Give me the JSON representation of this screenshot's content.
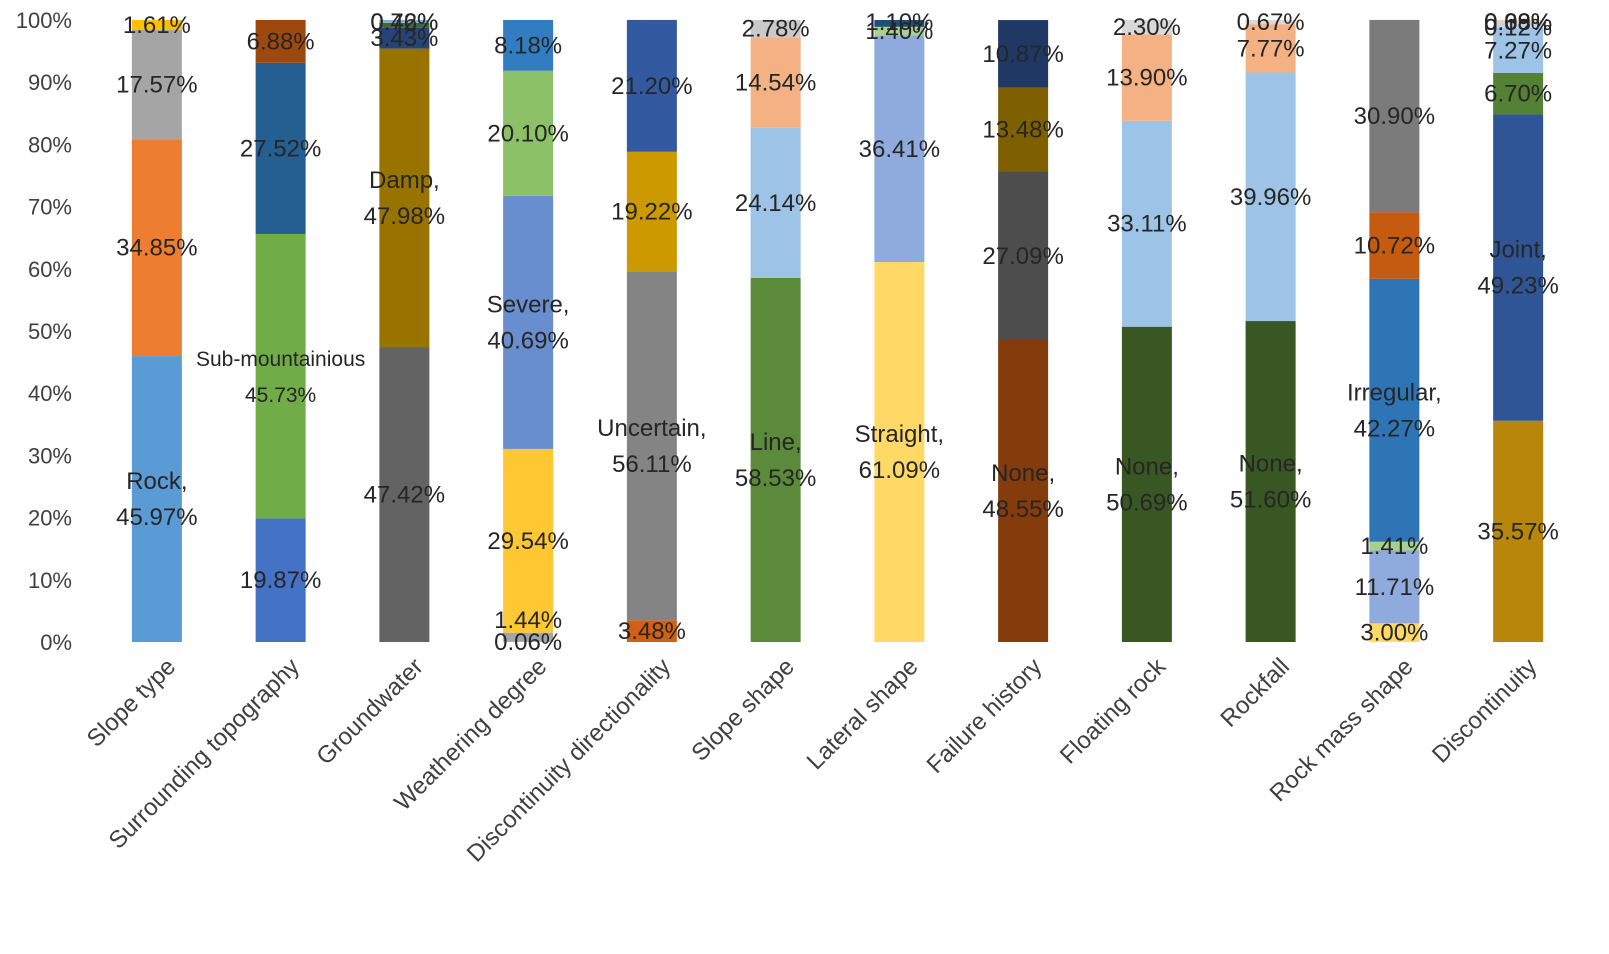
{
  "chart_data": {
    "type": "bar",
    "stacked": true,
    "percent_stacked": true,
    "title": "",
    "xlabel": "",
    "ylabel": "",
    "ylim": [
      0,
      100
    ],
    "y_ticks": [
      "0%",
      "10%",
      "20%",
      "30%",
      "40%",
      "50%",
      "60%",
      "70%",
      "80%",
      "90%",
      "100%"
    ],
    "grid": false,
    "legend": "none",
    "categories": [
      "Slope type",
      "Surrounding topography",
      "Groundwater",
      "Weathering degree",
      "Discontinuity directionality",
      "Slope shape",
      "Lateral shape",
      "Failure history",
      "Floating rock",
      "Rockfall",
      "Rock mass shape",
      "Discontinuity"
    ],
    "bars": [
      {
        "category": "Slope type",
        "segments": [
          {
            "value": 45.97,
            "label": "Rock,\n45.97%",
            "color": "#5b9bd5"
          },
          {
            "value": 34.85,
            "label": "34.85%",
            "color": "#ed7d31"
          },
          {
            "value": 17.57,
            "label": "17.57%",
            "color": "#a5a5a5"
          },
          {
            "value": 1.61,
            "label": "1.61%",
            "color": "#ffc000"
          }
        ]
      },
      {
        "category": "Surrounding topography",
        "segments": [
          {
            "value": 19.87,
            "label": "19.87%",
            "color": "#4472c4"
          },
          {
            "value": 45.73,
            "label": "Sub-mountainious\n45.73%",
            "color": "#70ad47"
          },
          {
            "value": 27.52,
            "label": "27.52%",
            "color": "#255e91"
          },
          {
            "value": 6.88,
            "label": "6.88%",
            "color": "#9e480e"
          }
        ]
      },
      {
        "category": "Groundwater",
        "segments": [
          {
            "value": 47.42,
            "label": "47.42%",
            "color": "#636363"
          },
          {
            "value": 47.98,
            "label": "Damp,\n47.98%",
            "color": "#997300"
          },
          {
            "value": 3.43,
            "label": "3.43%",
            "color": "#264478"
          },
          {
            "value": 0.72,
            "label": "0.72%",
            "color": "#43682b"
          },
          {
            "value": 0.46,
            "label": "0.46%",
            "color": "#7cafdd"
          }
        ]
      },
      {
        "category": "Weathering degree",
        "segments": [
          {
            "value": 0.06,
            "label": "0.06%",
            "color": "#a5a5a5"
          },
          {
            "value": 1.44,
            "label": "1.44%",
            "color": "#a5a5a5"
          },
          {
            "value": 29.54,
            "label": "29.54%",
            "color": "#ffc832"
          },
          {
            "value": 40.69,
            "label": "Severe,\n40.69%",
            "color": "#698ed0"
          },
          {
            "value": 20.1,
            "label": "20.10%",
            "color": "#8cc168"
          },
          {
            "value": 8.18,
            "label": "8.18%",
            "color": "#327dc2"
          }
        ]
      },
      {
        "category": "Discontinuity directionality",
        "segments": [
          {
            "value": 3.48,
            "label": "3.48%",
            "color": "#d26012"
          },
          {
            "value": 56.11,
            "label": "Uncertain,\n56.11%",
            "color": "#848484"
          },
          {
            "value": 19.22,
            "label": "19.22%",
            "color": "#cc9a00"
          },
          {
            "value": 21.2,
            "label": "21.20%",
            "color": "#335aa1"
          }
        ]
      },
      {
        "category": "Slope shape",
        "segments": [
          {
            "value": 58.53,
            "label": "Line,\n58.53%",
            "color": "#5a8a3a"
          },
          {
            "value": 24.14,
            "label": "24.14%",
            "color": "#9dc3e6"
          },
          {
            "value": 14.54,
            "label": "14.54%",
            "color": "#f4b183"
          },
          {
            "value": 2.78,
            "label": "2.78%",
            "color": "#c9c9c9"
          }
        ]
      },
      {
        "category": "Lateral shape",
        "segments": [
          {
            "value": 61.09,
            "label": "Straight,\n61.09%",
            "color": "#ffd966"
          },
          {
            "value": 36.41,
            "label": "36.41%",
            "color": "#8faadc"
          },
          {
            "value": 1.4,
            "label": "1.40%",
            "color": "#a9d18e"
          },
          {
            "value": 1.1,
            "label": "1.10%",
            "color": "#1f4e79"
          }
        ]
      },
      {
        "category": "Failure history",
        "segments": [
          {
            "value": 48.55,
            "label": "None,\n48.55%",
            "color": "#843c0c"
          },
          {
            "value": 27.09,
            "label": "27.09%",
            "color": "#4d4d4d"
          },
          {
            "value": 13.48,
            "label": "13.48%",
            "color": "#7f6000"
          },
          {
            "value": 10.87,
            "label": "10.87%",
            "color": "#1f3864"
          }
        ]
      },
      {
        "category": "Floating rock",
        "segments": [
          {
            "value": 50.69,
            "label": "None,\n50.69%",
            "color": "#385723"
          },
          {
            "value": 33.11,
            "label": "33.11%",
            "color": "#9dc3e6"
          },
          {
            "value": 13.9,
            "label": "13.90%",
            "color": "#f4b183"
          },
          {
            "value": 2.3,
            "label": "2.30%",
            "color": "#d9d9d9"
          }
        ]
      },
      {
        "category": "Rockfall",
        "segments": [
          {
            "value": 51.6,
            "label": "None,\n51.60%",
            "color": "#385723"
          },
          {
            "value": 39.96,
            "label": "39.96%",
            "color": "#9dc3e6"
          },
          {
            "value": 7.77,
            "label": "7.77%",
            "color": "#f4b183"
          },
          {
            "value": 0.67,
            "label": "0.67%",
            "color": "#d9d9d9"
          }
        ]
      },
      {
        "category": "Rock mass shape",
        "segments": [
          {
            "value": 3.0,
            "label": "3.00%",
            "color": "#ffd966"
          },
          {
            "value": 11.71,
            "label": "11.71%",
            "color": "#8faadc"
          },
          {
            "value": 1.41,
            "label": "1.41%",
            "color": "#a9d18e"
          },
          {
            "value": 42.27,
            "label": "Irregular,\n42.27%",
            "color": "#2e75b6"
          },
          {
            "value": 10.72,
            "label": "10.72%",
            "color": "#c55a11"
          },
          {
            "value": 30.9,
            "label": "30.90%",
            "color": "#7b7b7b"
          }
        ]
      },
      {
        "category": "Discontinuity",
        "segments": [
          {
            "value": 35.57,
            "label": "35.57%",
            "color": "#b8860b"
          },
          {
            "value": 49.23,
            "label": "Joint,\n49.23%",
            "color": "#2f5597"
          },
          {
            "value": 6.7,
            "label": "6.70%",
            "color": "#548235"
          },
          {
            "value": 7.27,
            "label": "7.27%",
            "color": "#9dc3e6"
          },
          {
            "value": 0.12,
            "label": "0.12%",
            "color": "#d9d9d9"
          },
          {
            "value": 0.69,
            "label": "0.69%",
            "color": "#bdd7ee"
          },
          {
            "value": 0.03,
            "label": "0.03%",
            "color": "#a6a6a6"
          },
          {
            "value": 0.38,
            "label": "0.38%",
            "color": "#f8cbad"
          }
        ]
      }
    ]
  }
}
